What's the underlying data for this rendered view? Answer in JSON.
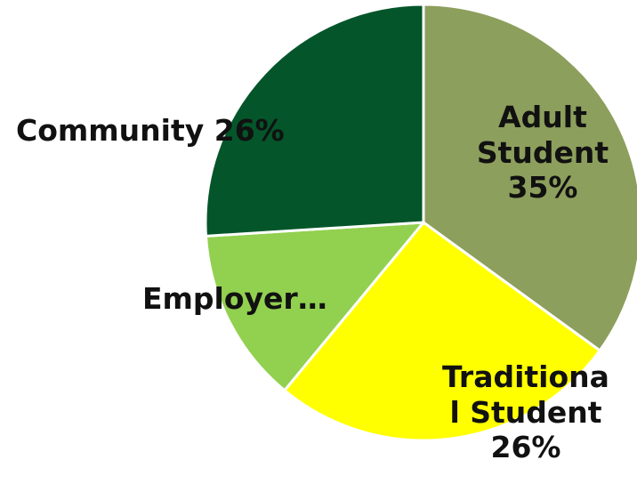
{
  "chart_data": {
    "type": "pie",
    "slices": [
      {
        "label": [
          "Adult",
          "Student",
          "35%"
        ],
        "value": 35,
        "color": "#8d9f5c"
      },
      {
        "label": [
          "Traditiona",
          "l Student",
          "26%"
        ],
        "value": 26,
        "color": "#ffff00"
      },
      {
        "label": [
          "Employer…"
        ],
        "value": 13,
        "color": "#92d050"
      },
      {
        "label": [
          "Community 26%"
        ],
        "value": 26,
        "color": "#04562a"
      }
    ],
    "start_angle_deg": 0,
    "direction": "clockwise"
  }
}
